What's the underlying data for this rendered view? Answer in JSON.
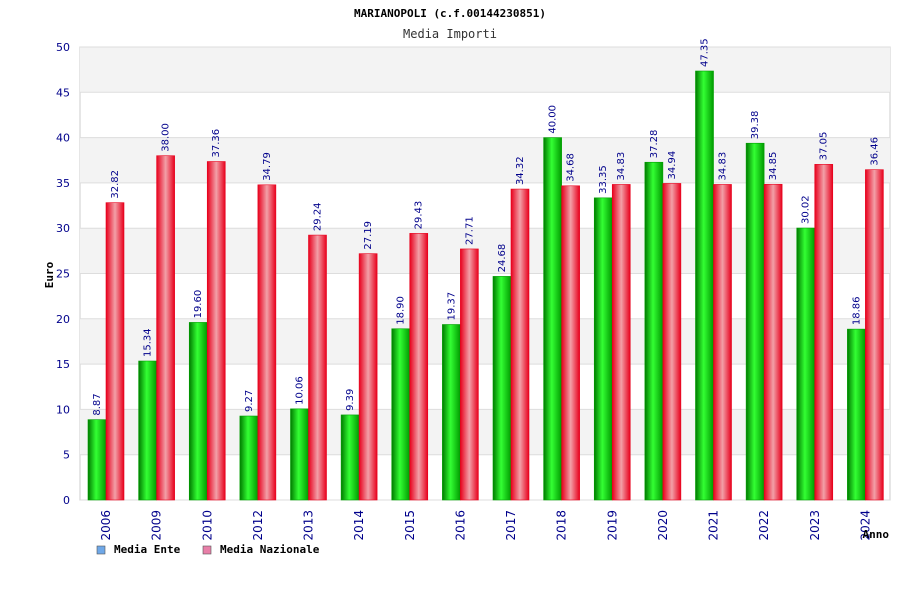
{
  "colors": {
    "series1": "#00a000",
    "series2": "#e8001c",
    "legend1": "#6fa8e8",
    "legend2": "#e87fa8",
    "band": "#f3f3f3",
    "grid": "#dddddd",
    "tick_text": "#00008b"
  },
  "chart_data": {
    "type": "bar",
    "title": "MARIANOPOLI (c.f.00144230851)",
    "subtitle": "Media Importi",
    "ylabel": "Euro",
    "xlabel": "Anno",
    "ylim": [
      0,
      50
    ],
    "yticks": [
      0,
      5,
      10,
      15,
      20,
      25,
      30,
      35,
      40,
      45,
      50
    ],
    "grid": true,
    "legend_position": "bottom-left",
    "categories": [
      "2006",
      "2009",
      "2010",
      "2012",
      "2013",
      "2014",
      "2015",
      "2016",
      "2017",
      "2018",
      "2019",
      "2020",
      "2021",
      "2022",
      "2023",
      "2024"
    ],
    "series": [
      {
        "name": "Media Ente",
        "values": [
          8.87,
          15.34,
          19.6,
          9.27,
          10.06,
          9.39,
          18.9,
          19.37,
          24.68,
          40.0,
          33.35,
          37.28,
          47.35,
          39.38,
          30.02,
          18.86
        ],
        "labels": [
          "8.87",
          "15.34",
          "19.60",
          "9.27",
          "10.06",
          "9.39",
          "18.90",
          "19.37",
          "24.68",
          "40.00",
          "33.35",
          "37.28",
          "47.35",
          "39.38",
          "30.02",
          "18.86"
        ]
      },
      {
        "name": "Media Nazionale",
        "values": [
          32.82,
          38.0,
          37.36,
          34.79,
          29.24,
          27.19,
          29.43,
          27.71,
          34.32,
          34.68,
          34.83,
          34.94,
          34.83,
          34.85,
          37.05,
          36.46
        ],
        "labels": [
          "32.82",
          "38.00",
          "37.36",
          "34.79",
          "29.24",
          "27.19",
          "29.43",
          "27.71",
          "34.32",
          "34.68",
          "34.83",
          "34.94",
          "34.83",
          "34.85",
          "37.05",
          "36.46"
        ]
      }
    ]
  }
}
